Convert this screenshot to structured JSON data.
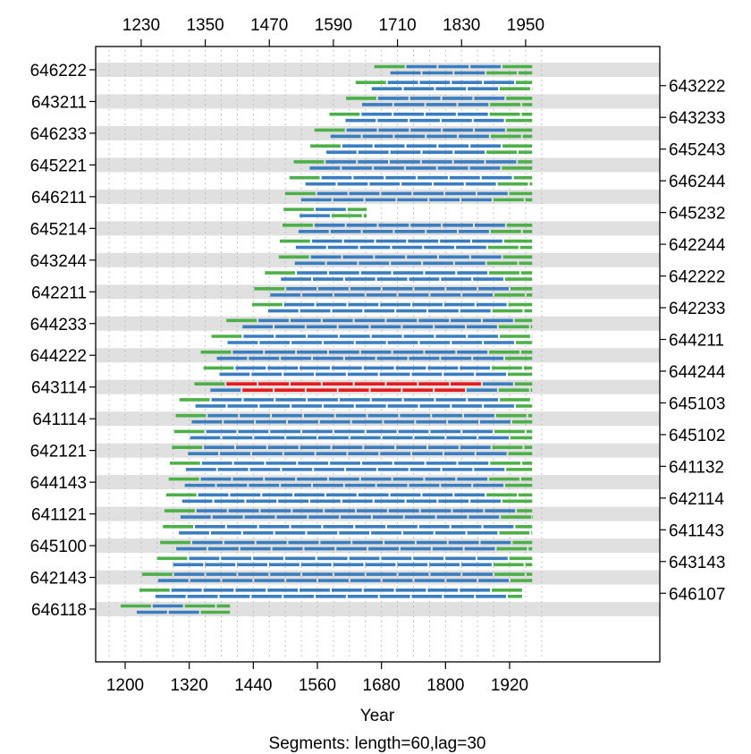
{
  "chart_data": {
    "type": "segment-plot",
    "xlabel": "Year",
    "subtitle": "Segments: length=60,lag=30",
    "xlim": [
      1165,
      1995
    ],
    "x_ticks_bottom": [
      1200,
      1320,
      1440,
      1560,
      1680,
      1800,
      1920
    ],
    "x_ticks_top": [
      1230,
      1350,
      1470,
      1590,
      1710,
      1830,
      1950
    ],
    "segment_length": 60,
    "segment_lag": 30,
    "colors": {
      "good": "#3a7ebf",
      "edge": "#4daf4a",
      "flagged": "#e41a1c",
      "band": "#e0e0e0",
      "grid": "#b0b0b0",
      "frame": "#000000"
    },
    "left_labels": [
      "646222",
      "643211",
      "646233",
      "645221",
      "646211",
      "645214",
      "643244",
      "642211",
      "644233",
      "644222",
      "643114",
      "641114",
      "642121",
      "644143",
      "641121",
      "645100",
      "642143",
      "646118"
    ],
    "right_labels": [
      "643222",
      "643233",
      "645243",
      "646244",
      "645232",
      "642244",
      "642222",
      "642233",
      "644211",
      "644244",
      "645103",
      "645102",
      "641132",
      "642114",
      "641143",
      "643143",
      "646107"
    ],
    "series": [
      {
        "name": "646222",
        "start": 1665,
        "end": 1964
      },
      {
        "name": "643222",
        "start": 1630,
        "end": 1964
      },
      {
        "name": "643211",
        "start": 1612,
        "end": 1964
      },
      {
        "name": "643233",
        "start": 1581,
        "end": 1964
      },
      {
        "name": "646233",
        "start": 1553,
        "end": 1964
      },
      {
        "name": "645243",
        "start": 1545,
        "end": 1964
      },
      {
        "name": "645221",
        "start": 1514,
        "end": 1964
      },
      {
        "name": "646244",
        "start": 1506,
        "end": 1964
      },
      {
        "name": "646211",
        "start": 1498,
        "end": 1964
      },
      {
        "name": "645232",
        "start": 1495,
        "end": 1654,
        "flagged": []
      },
      {
        "name": "645214",
        "start": 1493,
        "end": 1964
      },
      {
        "name": "642244",
        "start": 1488,
        "end": 1964
      },
      {
        "name": "643244",
        "start": 1486,
        "end": 1964
      },
      {
        "name": "642222",
        "start": 1460,
        "end": 1964
      },
      {
        "name": "642211",
        "start": 1440,
        "end": 1964
      },
      {
        "name": "642233",
        "start": 1436,
        "end": 1964
      },
      {
        "name": "644233",
        "start": 1388,
        "end": 1964
      },
      {
        "name": "644211",
        "start": 1360,
        "end": 1964
      },
      {
        "name": "644222",
        "start": 1340,
        "end": 1964
      },
      {
        "name": "644244",
        "start": 1345,
        "end": 1964
      },
      {
        "name": "643114",
        "start": 1328,
        "end": 1964,
        "flagged": [
          1360,
          1890
        ]
      },
      {
        "name": "645103",
        "start": 1300,
        "end": 1964
      },
      {
        "name": "641114",
        "start": 1293,
        "end": 1964
      },
      {
        "name": "645102",
        "start": 1290,
        "end": 1964
      },
      {
        "name": "642121",
        "start": 1286,
        "end": 1964
      },
      {
        "name": "641132",
        "start": 1282,
        "end": 1964
      },
      {
        "name": "644143",
        "start": 1280,
        "end": 1964
      },
      {
        "name": "642114",
        "start": 1275,
        "end": 1964
      },
      {
        "name": "641121",
        "start": 1272,
        "end": 1964
      },
      {
        "name": "641143",
        "start": 1269,
        "end": 1964
      },
      {
        "name": "645100",
        "start": 1264,
        "end": 1964
      },
      {
        "name": "643143",
        "start": 1258,
        "end": 1964
      },
      {
        "name": "642143",
        "start": 1230,
        "end": 1964
      },
      {
        "name": "646107",
        "start": 1225,
        "end": 1945
      },
      {
        "name": "646118",
        "start": 1190,
        "end": 1398
      }
    ]
  }
}
